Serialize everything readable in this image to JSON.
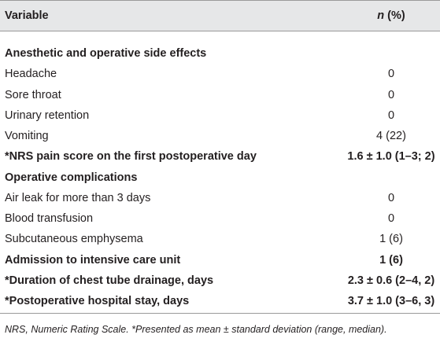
{
  "table": {
    "header": {
      "variable": "Variable",
      "n": "n",
      "percent": "(%)"
    },
    "rows": [
      {
        "label": "Anesthetic and operative side effects",
        "bold": true
      },
      {
        "label": "Headache",
        "value": "0"
      },
      {
        "label": "Sore throat",
        "value": "0"
      },
      {
        "label": "Urinary retention",
        "value": "0"
      },
      {
        "label": "Vomiting",
        "value": "4 (22)"
      },
      {
        "label": "*NRS pain score on the first postoperative day",
        "value": "1.6 ± 1.0 (1–3; 2)",
        "bold": true
      },
      {
        "label": "Operative complications",
        "bold": true
      },
      {
        "label": "Air leak for more than 3 days",
        "value": "0"
      },
      {
        "label": "Blood transfusion",
        "value": "0"
      },
      {
        "label": "Subcutaneous emphysema",
        "value": "1 (6)"
      },
      {
        "label": "Admission to intensive care unit",
        "value": "1 (6)",
        "bold": true
      },
      {
        "label": "*Duration of chest tube drainage, days",
        "value": "2.3 ± 0.6 (2–4, 2)",
        "bold": true
      },
      {
        "label": "*Postoperative hospital stay, days",
        "value": "3.7 ± 1.0 (3–6, 3)",
        "bold": true
      }
    ],
    "footnote": "NRS, Numeric Rating Scale. *Presented as mean ± standard deviation (range, median)."
  }
}
